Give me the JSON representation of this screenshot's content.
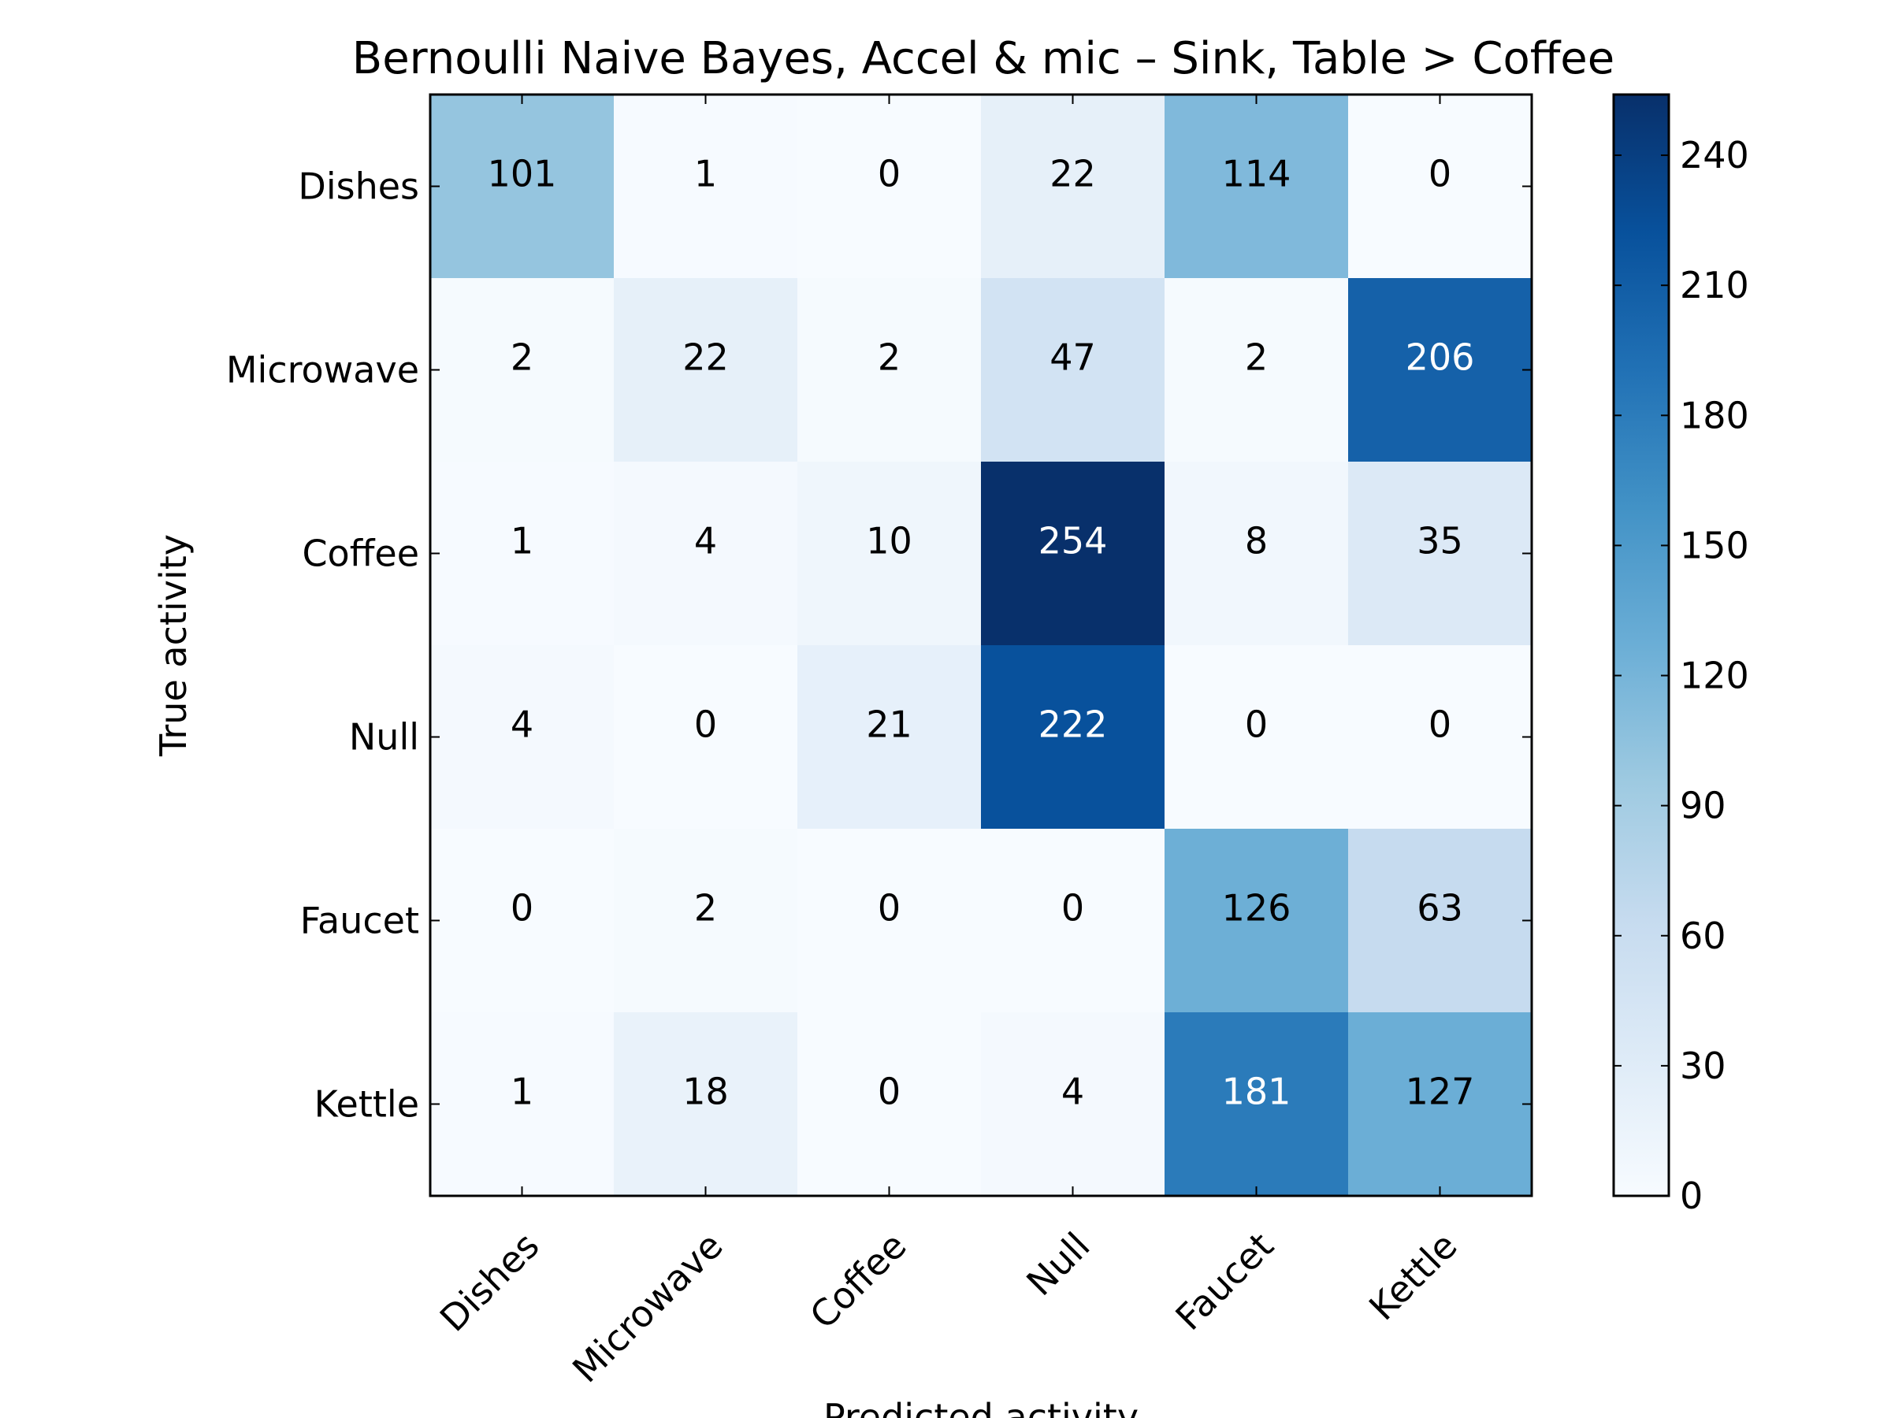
{
  "chart_data": {
    "type": "heatmap",
    "title": "Bernoulli Naive Bayes, Accel & mic – Sink, Table > Coffee",
    "xlabel": "Predicted activity",
    "ylabel": "True activity",
    "x_categories": [
      "Dishes",
      "Microwave",
      "Coffee",
      "Null",
      "Faucet",
      "Kettle"
    ],
    "y_categories": [
      "Dishes",
      "Microwave",
      "Coffee",
      "Null",
      "Faucet",
      "Kettle"
    ],
    "matrix": [
      [
        101,
        1,
        0,
        22,
        114,
        0
      ],
      [
        2,
        22,
        2,
        47,
        2,
        206
      ],
      [
        1,
        4,
        10,
        254,
        8,
        35
      ],
      [
        4,
        0,
        21,
        222,
        0,
        0
      ],
      [
        0,
        2,
        0,
        0,
        126,
        63
      ],
      [
        1,
        18,
        0,
        4,
        181,
        127
      ]
    ],
    "colormap": "Blues",
    "colorbar": {
      "range": [
        0,
        254
      ],
      "ticks": [
        0,
        30,
        60,
        90,
        120,
        150,
        180,
        210,
        240
      ]
    },
    "grid": false,
    "legend": "colorbar right"
  }
}
